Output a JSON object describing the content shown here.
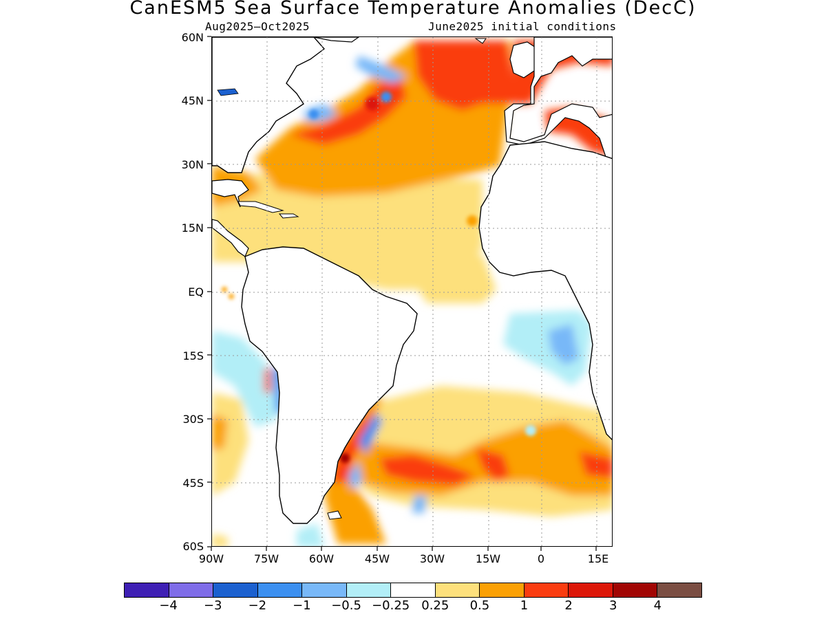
{
  "title": "CanESM5 Sea Surface Temperature Anomalies (DecC)",
  "subtitle_left": "Aug2025—Oct2025",
  "subtitle_right": "June2025 initial conditions",
  "lat_labels": [
    "60N",
    "45N",
    "30N",
    "15N",
    "EQ",
    "15S",
    "30S",
    "45S",
    "60S"
  ],
  "lon_labels": [
    "90W",
    "75W",
    "60W",
    "45W",
    "30W",
    "15W",
    "0",
    "15E"
  ],
  "colorbar": {
    "colors": [
      "#3e1fb4",
      "#7e6ce8",
      "#1b60cf",
      "#3b8ff0",
      "#78b8f8",
      "#b2eef7",
      "#ffffff",
      "#fde07c",
      "#fba004",
      "#fa3c10",
      "#dc1608",
      "#a10503",
      "#7a4d42"
    ],
    "tick_labels": [
      "−4",
      "−3",
      "−2",
      "−1",
      "−0.5",
      "−0.25",
      "0.25",
      "0.5",
      "1",
      "2",
      "3",
      "4"
    ]
  },
  "map_colors": {
    "land": "#ffffff",
    "coast": "#000000",
    "grid": "#9a9a9a"
  }
}
